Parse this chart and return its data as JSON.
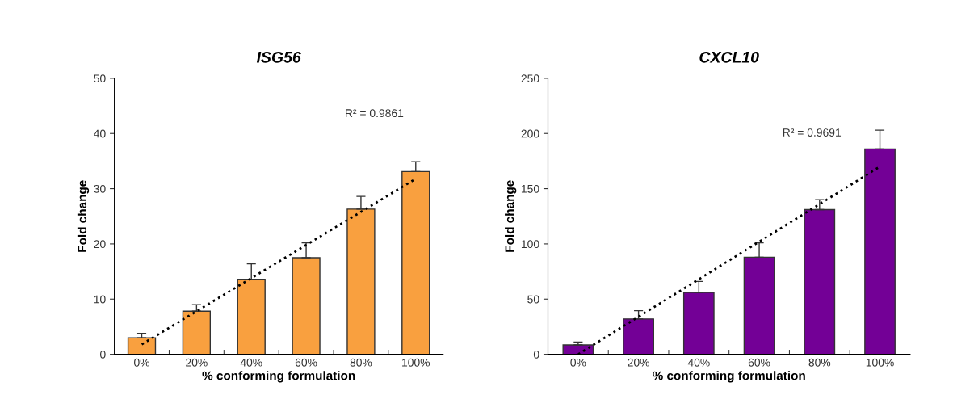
{
  "chart_data": [
    {
      "type": "bar",
      "title": "ISG56",
      "xlabel": "% conforming formulation",
      "ylabel": "Fold change",
      "categories": [
        "0%",
        "20%",
        "40%",
        "60%",
        "80%",
        "100%"
      ],
      "series": [
        {
          "color": "#f9a03f",
          "values": [
            3.0,
            7.8,
            13.6,
            17.5,
            26.3,
            33.1
          ],
          "errors": [
            [
              3.0,
              3.8
            ],
            [
              7.8,
              9.0
            ],
            [
              13.6,
              16.4
            ],
            [
              17.5,
              20.2
            ],
            [
              26.3,
              28.6
            ],
            [
              33.1,
              34.9
            ]
          ]
        },
        {
          "type": "line",
          "color": "#000000",
          "line_style": "dotted",
          "values": [
            1.8,
            7.8,
            13.8,
            19.8,
            25.8,
            31.8
          ]
        }
      ],
      "ylim": [
        0,
        50
      ],
      "yticks": [
        0,
        10,
        20,
        30,
        40,
        50
      ],
      "grid": false,
      "legend": false,
      "annotations": [
        "R² = 0.9861"
      ]
    },
    {
      "type": "bar",
      "title": "CXCL10",
      "xlabel": "% conforming formulation",
      "ylabel": "Fold change",
      "categories": [
        "0%",
        "20%",
        "40%",
        "60%",
        "80%",
        "100%"
      ],
      "series": [
        {
          "color": "#730096",
          "values": [
            8.5,
            32,
            56,
            88,
            131,
            186
          ],
          "errors": [
            [
              8.5,
              11
            ],
            [
              32,
              39.5
            ],
            [
              56,
              66
            ],
            [
              88,
              101
            ],
            [
              131,
              140
            ],
            [
              186,
              203
            ]
          ]
        },
        {
          "type": "line",
          "color": "#000000",
          "line_style": "dotted",
          "values": [
            0,
            34,
            68,
            102,
            136,
            170
          ]
        }
      ],
      "ylim": [
        0,
        250
      ],
      "yticks": [
        0,
        50,
        100,
        150,
        200,
        250
      ],
      "grid": false,
      "legend": false,
      "annotations": [
        "R² = 0.9691"
      ]
    }
  ]
}
